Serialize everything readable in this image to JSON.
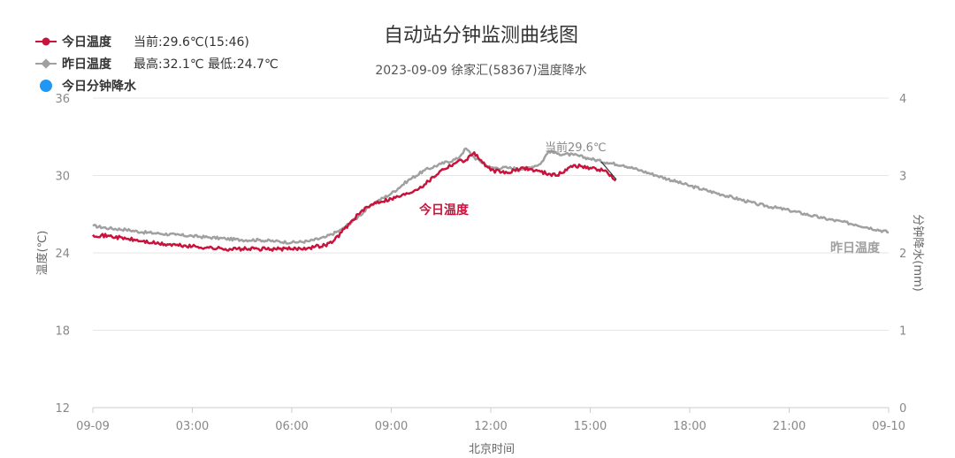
{
  "chart_data": {
    "type": "line",
    "title": "自动站分钟监测曲线图",
    "subtitle": "2023-09-09 徐家汇(58367)温度降水",
    "legend": [
      {
        "name": "今日温度",
        "info": "当前:29.6℃(15:46)",
        "color": "#c8143c",
        "marker": "circle-line"
      },
      {
        "name": "昨日温度",
        "info": "最高:32.1℃ 最低:24.7℃",
        "color": "#a0a0a0",
        "marker": "diamond-line"
      },
      {
        "name": "今日分钟降水",
        "info": "",
        "color": "#2196f3",
        "marker": "dot"
      }
    ],
    "xlabel": "北京时间",
    "ylabel_left": "温度(℃)",
    "ylabel_right": "分钟降水(mm)",
    "x_ticks": [
      "09-09",
      "03:00",
      "06:00",
      "09:00",
      "12:00",
      "15:00",
      "18:00",
      "21:00",
      "09-10"
    ],
    "y_left_ticks": [
      "36",
      "30",
      "24",
      "18",
      "12"
    ],
    "y_right_ticks": [
      "4",
      "3",
      "2",
      "1",
      "0"
    ],
    "ylim_left": [
      12,
      36
    ],
    "ylim_right": [
      0,
      4
    ],
    "xlim_hours": [
      0,
      24
    ],
    "grid": true,
    "annotation": "当前29.6℃",
    "series_labels": {
      "today": "今日温度",
      "yesterday": "昨日温度"
    },
    "series": [
      {
        "name": "今日温度",
        "color": "#c8143c",
        "hours": [
          0,
          0.5,
          1,
          1.5,
          2,
          2.5,
          3,
          3.5,
          4,
          4.5,
          5,
          5.5,
          6,
          6.5,
          7,
          7.25,
          7.5,
          8,
          8.5,
          9,
          9.5,
          10,
          10.5,
          11,
          11.25,
          11.5,
          11.75,
          12,
          12.5,
          13,
          13.5,
          14,
          14.5,
          15,
          15.5,
          15.77
        ],
        "values": [
          25.4,
          25.3,
          25.1,
          24.9,
          24.7,
          24.6,
          24.5,
          24.4,
          24.3,
          24.3,
          24.3,
          24.3,
          24.3,
          24.4,
          24.6,
          24.9,
          25.6,
          27.0,
          27.9,
          28.2,
          28.6,
          29.3,
          30.4,
          31.1,
          31.2,
          31.8,
          31.0,
          30.4,
          30.2,
          30.6,
          30.3,
          30.0,
          30.8,
          30.6,
          30.3,
          29.6
        ]
      },
      {
        "name": "昨日温度",
        "color": "#a0a0a0",
        "hours": [
          0,
          0.5,
          1,
          1.5,
          2,
          2.5,
          3,
          3.5,
          4,
          4.5,
          5,
          5.5,
          6,
          6.5,
          7,
          7.5,
          8,
          8.5,
          9,
          9.5,
          10,
          10.5,
          11,
          11.25,
          11.5,
          12,
          12.5,
          13,
          13.5,
          13.75,
          14,
          14.5,
          15,
          15.5,
          16,
          16.5,
          17,
          18,
          19,
          20,
          21,
          22,
          23,
          24
        ],
        "values": [
          26.1,
          25.9,
          25.8,
          25.6,
          25.5,
          25.4,
          25.3,
          25.2,
          25.1,
          25.0,
          25.0,
          24.9,
          24.8,
          24.9,
          25.2,
          25.8,
          26.8,
          27.9,
          28.6,
          29.6,
          30.4,
          30.9,
          31.3,
          32.1,
          31.4,
          30.6,
          30.6,
          30.5,
          30.9,
          31.9,
          31.7,
          31.6,
          31.3,
          31.0,
          30.8,
          30.4,
          30.0,
          29.2,
          28.5,
          27.8,
          27.3,
          26.7,
          26.2,
          25.6
        ]
      }
    ],
    "precipitation": []
  }
}
